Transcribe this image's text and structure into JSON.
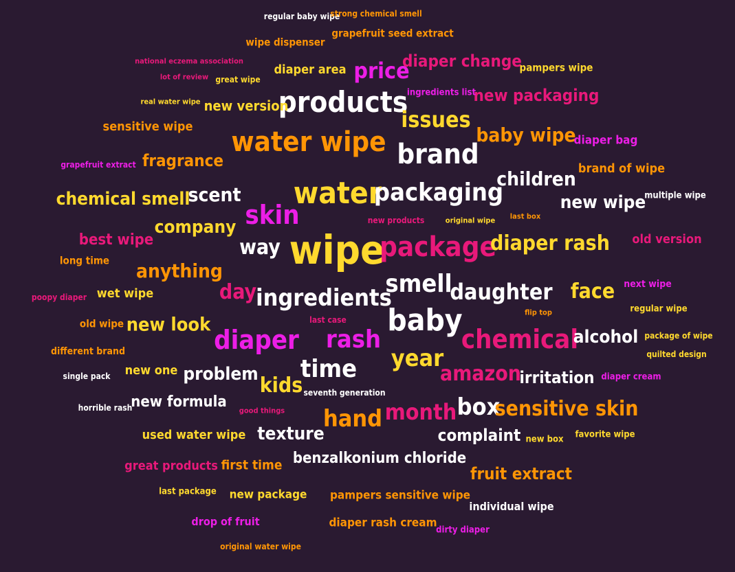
{
  "palette": {
    "background": "#2a1a31",
    "white": "#ffffff",
    "yellow": "#ffd92e",
    "orange": "#ff9505",
    "pink": "#e8197a",
    "magenta": "#ec1ee6"
  },
  "words": [
    {
      "text": "wipe",
      "color": "yellow"
    },
    {
      "text": "water",
      "color": "yellow"
    },
    {
      "text": "baby",
      "color": "white"
    },
    {
      "text": "products",
      "color": "white"
    },
    {
      "text": "water wipe",
      "color": "orange"
    },
    {
      "text": "package",
      "color": "pink"
    },
    {
      "text": "brand",
      "color": "white"
    },
    {
      "text": "chemical",
      "color": "pink"
    },
    {
      "text": "packaging",
      "color": "white"
    },
    {
      "text": "diaper",
      "color": "magenta"
    },
    {
      "text": "ingredients",
      "color": "white"
    },
    {
      "text": "smell",
      "color": "white"
    },
    {
      "text": "time",
      "color": "white"
    },
    {
      "text": "skin",
      "color": "magenta"
    },
    {
      "text": "rash",
      "color": "magenta"
    },
    {
      "text": "year",
      "color": "yellow"
    },
    {
      "text": "hand",
      "color": "orange"
    },
    {
      "text": "month",
      "color": "pink"
    },
    {
      "text": "box",
      "color": "white"
    },
    {
      "text": "price",
      "color": "magenta"
    },
    {
      "text": "issues",
      "color": "yellow"
    },
    {
      "text": "daughter",
      "color": "white"
    },
    {
      "text": "diaper rash",
      "color": "yellow"
    },
    {
      "text": "amazon",
      "color": "pink"
    },
    {
      "text": "sensitive skin",
      "color": "orange"
    },
    {
      "text": "children",
      "color": "white"
    },
    {
      "text": "day",
      "color": "pink"
    },
    {
      "text": "face",
      "color": "yellow"
    },
    {
      "text": "company",
      "color": "yellow"
    },
    {
      "text": "way",
      "color": "white"
    },
    {
      "text": "anything",
      "color": "orange"
    },
    {
      "text": "new look",
      "color": "yellow"
    },
    {
      "text": "kids",
      "color": "yellow"
    },
    {
      "text": "baby wipe",
      "color": "orange"
    },
    {
      "text": "scent",
      "color": "white"
    },
    {
      "text": "chemical smell",
      "color": "yellow"
    },
    {
      "text": "new wipe",
      "color": "white"
    },
    {
      "text": "alcohol",
      "color": "white"
    },
    {
      "text": "problem",
      "color": "white"
    },
    {
      "text": "texture",
      "color": "white"
    },
    {
      "text": "diaper change",
      "color": "pink"
    },
    {
      "text": "new packaging",
      "color": "pink"
    },
    {
      "text": "fragrance",
      "color": "orange"
    },
    {
      "text": "complaint",
      "color": "white"
    },
    {
      "text": "irritation",
      "color": "white"
    },
    {
      "text": "benzalkonium chloride",
      "color": "white"
    },
    {
      "text": "fruit extract",
      "color": "orange"
    },
    {
      "text": "new formula",
      "color": "white"
    },
    {
      "text": "best wipe",
      "color": "pink"
    },
    {
      "text": "new version",
      "color": "yellow"
    },
    {
      "text": "diaper area",
      "color": "yellow"
    },
    {
      "text": "sensitive wipe",
      "color": "orange"
    },
    {
      "text": "brand of wipe",
      "color": "orange"
    },
    {
      "text": "old version",
      "color": "pink"
    },
    {
      "text": "used water wipe",
      "color": "yellow"
    },
    {
      "text": "first time",
      "color": "orange"
    },
    {
      "text": "great products",
      "color": "pink"
    },
    {
      "text": "new one",
      "color": "yellow"
    },
    {
      "text": "wet wipe",
      "color": "yellow"
    },
    {
      "text": "pampers sensitive wipe",
      "color": "orange"
    },
    {
      "text": "new package",
      "color": "yellow"
    },
    {
      "text": "diaper rash cream",
      "color": "orange"
    },
    {
      "text": "individual wipe",
      "color": "white"
    },
    {
      "text": "drop of fruit",
      "color": "magenta"
    },
    {
      "text": "diaper bag",
      "color": "magenta"
    },
    {
      "text": "pampers wipe",
      "color": "yellow"
    },
    {
      "text": "grapefruit seed extract",
      "color": "orange"
    },
    {
      "text": "wipe dispenser",
      "color": "orange"
    },
    {
      "text": "long time",
      "color": "orange"
    },
    {
      "text": "old wipe",
      "color": "orange"
    },
    {
      "text": "different brand",
      "color": "orange"
    },
    {
      "text": "favorite wipe",
      "color": "yellow"
    },
    {
      "text": "new box",
      "color": "yellow"
    },
    {
      "text": "dirty diaper",
      "color": "magenta"
    },
    {
      "text": "next wipe",
      "color": "magenta"
    },
    {
      "text": "regular wipe",
      "color": "yellow"
    },
    {
      "text": "package of wipe",
      "color": "yellow"
    },
    {
      "text": "quilted design",
      "color": "yellow"
    },
    {
      "text": "diaper cream",
      "color": "magenta"
    },
    {
      "text": "ingredients list",
      "color": "magenta"
    },
    {
      "text": "multiple wipe",
      "color": "white"
    },
    {
      "text": "grapefruit extract",
      "color": "magenta"
    },
    {
      "text": "last package",
      "color": "yellow"
    },
    {
      "text": "new products",
      "color": "pink"
    },
    {
      "text": "original wipe",
      "color": "yellow"
    },
    {
      "text": "last box",
      "color": "orange"
    },
    {
      "text": "flip top",
      "color": "orange"
    },
    {
      "text": "last case",
      "color": "pink"
    },
    {
      "text": "seventh generation",
      "color": "white"
    },
    {
      "text": "good things",
      "color": "pink"
    },
    {
      "text": "poopy diaper",
      "color": "pink"
    },
    {
      "text": "single pack",
      "color": "white"
    },
    {
      "text": "horrible rash",
      "color": "white"
    },
    {
      "text": "regular baby wipe",
      "color": "white"
    },
    {
      "text": "strong chemical smell",
      "color": "orange"
    },
    {
      "text": "national eczema association",
      "color": "pink"
    },
    {
      "text": "lot of review",
      "color": "pink"
    },
    {
      "text": "great wipe",
      "color": "yellow"
    },
    {
      "text": "real water wipe",
      "color": "yellow"
    },
    {
      "text": "original water wipe",
      "color": "orange"
    }
  ]
}
